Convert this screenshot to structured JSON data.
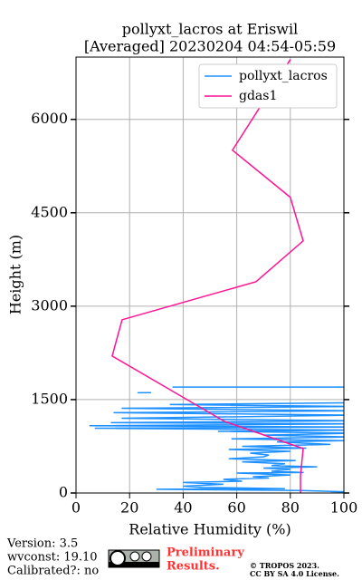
{
  "chart_data": {
    "type": "line",
    "title": "pollyxt_lacros at Eriswil",
    "subtitle": "[Averaged] 20230204 04:54-05:59",
    "x_label": "Relative Humidity (%)",
    "y_label": "Height (m)",
    "xlim": [
      0,
      100
    ],
    "xticks": [
      0,
      20,
      40,
      60,
      80,
      100
    ],
    "ylim": [
      0,
      7000
    ],
    "yticks": [
      0,
      1500,
      3000,
      4500,
      6000
    ],
    "grid": true,
    "legend": "upper right",
    "series": [
      {
        "name": "pollyxt_lacros",
        "color": "#1e90ff",
        "x": [
          95,
          100,
          84,
          30,
          78,
          47,
          40,
          55,
          40,
          62,
          55,
          72,
          66,
          80,
          60,
          85,
          73,
          80,
          70,
          90,
          73,
          78,
          62,
          82,
          57,
          70,
          72,
          65,
          80,
          57,
          86,
          62,
          95,
          75,
          100,
          58,
          103,
          70,
          104,
          53,
          104,
          7,
          104,
          5,
          104,
          13,
          104,
          17,
          104,
          14,
          104,
          17,
          104,
          35,
          104,
          null,
          23,
          28,
          null,
          36,
          104
        ],
        "y": [
          0,
          20,
          40,
          60,
          70,
          90,
          110,
          140,
          170,
          190,
          220,
          240,
          260,
          290,
          320,
          330,
          350,
          380,
          400,
          420,
          440,
          470,
          500,
          520,
          550,
          580,
          610,
          640,
          670,
          700,
          720,
          750,
          780,
          820,
          840,
          870,
          900,
          930,
          960,
          990,
          1010,
          1040,
          1060,
          1080,
          1110,
          1130,
          1160,
          1200,
          1250,
          1290,
          1320,
          1360,
          1390,
          1420,
          1450,
          null,
          1610,
          1612,
          null,
          1700,
          1700
        ]
      },
      {
        "name": "gdas1",
        "color": "#ff1493",
        "x": [
          83.8,
          83.8,
          84.8,
          55.4,
          13.5,
          17.2,
          67.2,
          84.8,
          80,
          58.4,
          80
        ],
        "y": [
          0,
          277,
          714,
          1150,
          2199,
          2782,
          3393,
          4049,
          4748,
          5505,
          6961
        ]
      }
    ],
    "annotations": [
      "Version: 3.5",
      "wvconst:  19.10",
      "Calibrated?: no",
      "Preliminary",
      "Results.",
      "© TROPOS 2023.",
      "CC BY SA 4.0 License."
    ]
  }
}
